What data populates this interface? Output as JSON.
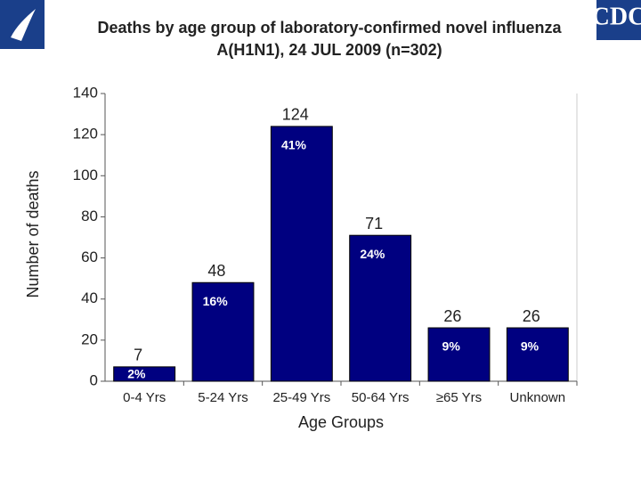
{
  "header": {
    "logo_text": "CDC"
  },
  "chart_data": {
    "type": "bar",
    "title": "Deaths by age group of laboratory-confirmed novel influenza",
    "subtitle": "A(H1N1), 24 JUL 2009 (n=302)",
    "x_label": "Age Groups",
    "y_label": "Number of deaths",
    "categories": [
      "0-4 Yrs",
      "5-24 Yrs",
      "25-49 Yrs",
      "50-64 Yrs",
      "≥65  Yrs",
      "Unknown"
    ],
    "values": [
      7,
      48,
      124,
      71,
      26,
      26
    ],
    "percent_labels": [
      "2%",
      "16%",
      "41%",
      "24%",
      "9%",
      "9%"
    ],
    "color": "#000080",
    "ylim": [
      0,
      140
    ],
    "yticks": [
      0,
      20,
      40,
      60,
      80,
      100,
      120,
      140
    ],
    "grid": false
  }
}
